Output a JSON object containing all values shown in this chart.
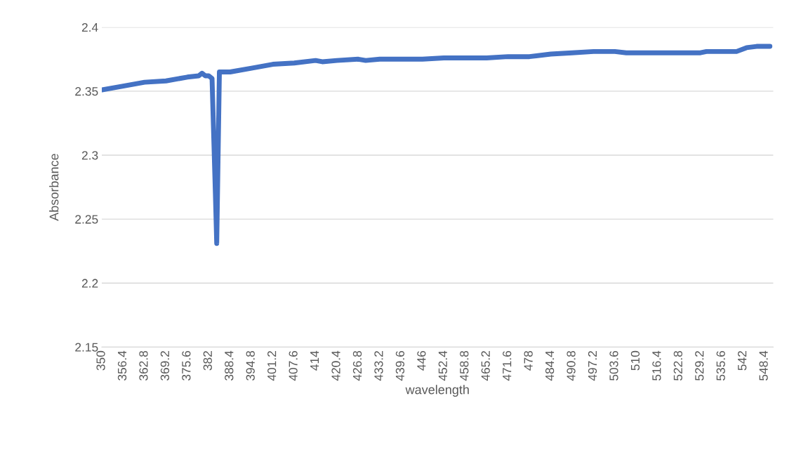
{
  "chart_data": {
    "type": "line",
    "xlabel": "wavelength",
    "ylabel": "Absorbance",
    "series": [
      {
        "color": "#4472c4",
        "x": [
          350,
          356.4,
          362.8,
          369.2,
          375.6,
          379,
          380,
          381,
          382,
          383,
          384,
          384.4,
          385.2,
          388.4,
          394.8,
          401.2,
          407.6,
          414,
          416,
          420.4,
          426.8,
          429,
          433.2,
          446,
          452.4,
          465.2,
          471.6,
          478,
          484.4,
          490.8,
          497.2,
          503.6,
          507,
          529.2,
          531,
          540,
          543,
          546,
          550
        ],
        "values": [
          2.351,
          2.354,
          2.357,
          2.358,
          2.361,
          2.362,
          2.364,
          2.362,
          2.362,
          2.36,
          2.27,
          2.231,
          2.365,
          2.365,
          2.368,
          2.371,
          2.372,
          2.374,
          2.373,
          2.374,
          2.375,
          2.374,
          2.375,
          2.375,
          2.376,
          2.376,
          2.377,
          2.377,
          2.379,
          2.38,
          2.381,
          2.381,
          2.38,
          2.38,
          2.381,
          2.381,
          2.384,
          2.385,
          2.385
        ]
      }
    ],
    "xlim": [
      350,
      551
    ],
    "xticks": [
      350,
      356.4,
      362.8,
      369.2,
      375.6,
      382,
      388.4,
      394.8,
      401.2,
      407.6,
      414,
      420.4,
      426.8,
      433.2,
      439.6,
      446,
      452.4,
      458.8,
      465.2,
      471.6,
      478,
      484.4,
      490.8,
      497.2,
      503.6,
      510,
      516.4,
      522.8,
      529.2,
      535.6,
      542,
      548.4
    ],
    "ylim": [
      2.15,
      2.4
    ],
    "yticks": [
      2.15,
      2.2,
      2.25,
      2.3,
      2.35,
      2.4
    ],
    "grid": "y",
    "marker": "none",
    "line_style": "solid"
  }
}
